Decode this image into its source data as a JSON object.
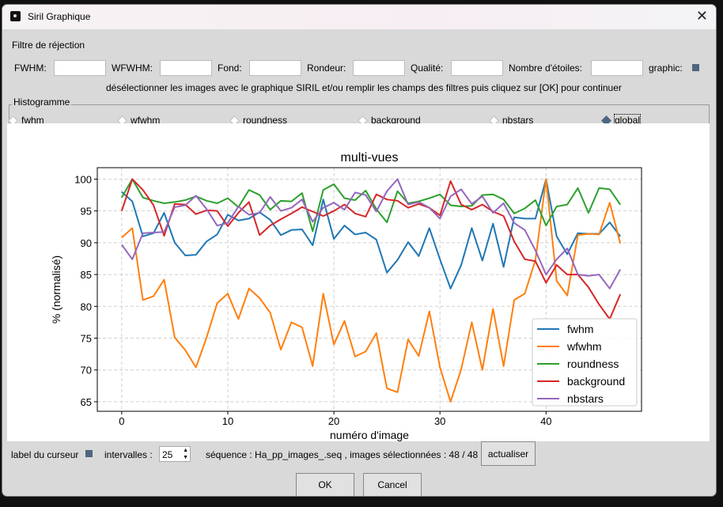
{
  "window": {
    "title": "Siril Graphique"
  },
  "filters": {
    "section_label": "Filtre de réjection",
    "fields": [
      {
        "label": "FWHM:",
        "value": ""
      },
      {
        "label": "WFWHM:",
        "value": ""
      },
      {
        "label": "Fond:",
        "value": ""
      },
      {
        "label": "Rondeur:",
        "value": ""
      },
      {
        "label": "Qualité:",
        "value": ""
      },
      {
        "label": "Nombre d'étoiles:",
        "value": ""
      }
    ],
    "graphic_label": "graphic:",
    "instructions": "désélectionner les images avec le graphique SIRIL et/ou remplir les champs des filtres puis cliquez sur [OK] pour continuer"
  },
  "histogram": {
    "label": "Histogramme",
    "options": [
      "fwhm",
      "wfwhm",
      "roundness",
      "background",
      "nbstars",
      "global"
    ],
    "selected": "global"
  },
  "bottom": {
    "cursor_label": "label du curseur",
    "intervals_label": "intervalles :",
    "intervals_value": "25",
    "sequence_text": "séquence : Ha_pp_images_.seq ,  images sélectionnées : 48 / 48",
    "refresh_button": "actualiser",
    "ok_button": "OK",
    "cancel_button": "Cancel"
  },
  "chart_data": {
    "type": "line",
    "title": "multi-vues",
    "xlabel": "numéro d'image",
    "ylabel": "% (normalisé)",
    "xlim": [
      -2.3,
      49
    ],
    "ylim": [
      63.5,
      101.8
    ],
    "xticks": [
      0,
      10,
      20,
      30,
      40
    ],
    "yticks": [
      65,
      70,
      75,
      80,
      85,
      90,
      95,
      100
    ],
    "grid": true,
    "legend": "bottom-right",
    "x": [
      0,
      1,
      2,
      3,
      4,
      5,
      6,
      7,
      8,
      9,
      10,
      11,
      12,
      13,
      14,
      15,
      16,
      17,
      18,
      19,
      20,
      21,
      22,
      23,
      24,
      25,
      26,
      27,
      28,
      29,
      30,
      31,
      32,
      33,
      34,
      35,
      36,
      37,
      38,
      39,
      40,
      41,
      42,
      43,
      44,
      45,
      46,
      47
    ],
    "series": [
      {
        "name": "fwhm",
        "color": "#1f77b4",
        "values": [
          98,
          96.5,
          91,
          91.5,
          94.7,
          90,
          88,
          88.1,
          90.2,
          91.3,
          94.4,
          93.5,
          93.8,
          94.8,
          93.6,
          91.2,
          92,
          92.1,
          89.6,
          96.8,
          90.6,
          92.7,
          91.3,
          91.6,
          90.5,
          85.3,
          87.3,
          90.1,
          87.9,
          92.3,
          87.4,
          82.8,
          86.5,
          92.3,
          87.2,
          93,
          86.2,
          94,
          93.8,
          93.8,
          100,
          91,
          88.2,
          91.5,
          91.4,
          91.4,
          93.2,
          91
        ]
      },
      {
        "name": "wfwhm",
        "color": "#ff7f0e",
        "values": [
          90.8,
          92.3,
          81,
          81.6,
          84.2,
          75.1,
          73.1,
          70.4,
          75.1,
          80.5,
          82,
          78,
          82.8,
          81.3,
          79,
          73.2,
          77.5,
          76.7,
          70.6,
          82,
          74,
          77.7,
          72.1,
          72.9,
          75.8,
          67.1,
          66.5,
          74.8,
          72.2,
          79.2,
          70.4,
          65,
          70.1,
          77.5,
          70,
          79.6,
          70.6,
          81,
          82,
          87.3,
          100,
          84,
          81.7,
          91.2,
          91.4,
          91.3,
          96.3,
          89.9
        ]
      },
      {
        "name": "roundness",
        "color": "#2ca02c",
        "values": [
          97.1,
          100,
          97.1,
          96.6,
          96.2,
          96.4,
          96.7,
          97.3,
          96.6,
          96.2,
          97,
          95.6,
          98.3,
          97.5,
          95.2,
          96.6,
          96.5,
          97.8,
          91.8,
          98.3,
          99.2,
          97,
          96.7,
          98.2,
          95.3,
          93.2,
          98.1,
          96.2,
          96.5,
          97,
          97.6,
          95.9,
          95.7,
          95.8,
          97.5,
          97.6,
          96.8,
          94.6,
          95.4,
          96.7,
          92.7,
          95.7,
          96,
          98.6,
          94.7,
          98.6,
          98.4,
          96
        ]
      },
      {
        "name": "background",
        "color": "#d62728",
        "values": [
          95,
          100,
          98.3,
          95.9,
          91.1,
          96.1,
          96,
          94.5,
          95.1,
          95,
          92.6,
          94.7,
          96.4,
          91.2,
          92.7,
          93.7,
          94.6,
          95.6,
          94.9,
          94.2,
          95,
          96,
          94.6,
          94.1,
          97.6,
          96.8,
          96.6,
          95.5,
          96.1,
          95.5,
          94.3,
          99.7,
          96,
          95.2,
          96,
          94.9,
          94.2,
          90.2,
          87.4,
          87.1,
          83.7,
          86.5,
          85,
          85,
          83,
          80.3,
          78,
          81.9
        ]
      },
      {
        "name": "nbstars",
        "color": "#9467bd",
        "values": [
          89.7,
          87.4,
          91.5,
          91.6,
          91.7,
          95.6,
          95.9,
          97.4,
          95.3,
          92.7,
          93.1,
          95.7,
          94.4,
          94.7,
          97.2,
          95,
          95.5,
          96.8,
          93.3,
          95.5,
          96.3,
          95.2,
          97.9,
          97.5,
          94.9,
          98.1,
          100,
          96,
          96.4,
          95.5,
          93.8,
          97.3,
          98.4,
          96.1,
          97.3,
          94.7,
          96.2,
          93.1,
          92,
          88.8,
          85,
          87.4,
          89.1,
          85,
          84.8,
          85,
          82.8,
          85.8
        ]
      }
    ]
  }
}
